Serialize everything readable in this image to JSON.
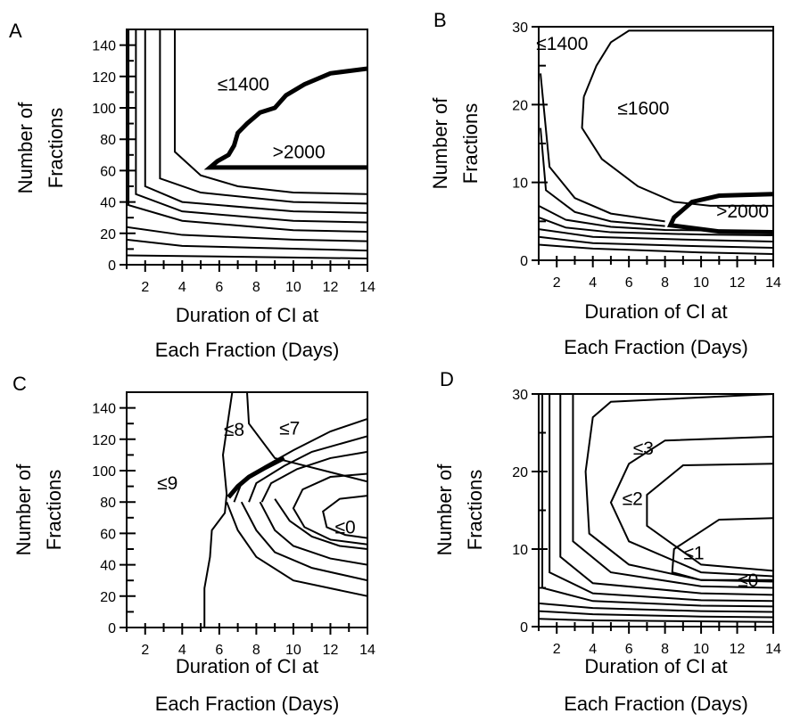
{
  "chart_data": [
    {
      "type": "contour",
      "panel_label": "A",
      "ylabel_lines": [
        "Number of",
        "Fractions"
      ],
      "xlabel_lines": [
        "Duration of CI at",
        "Each Fraction (Days)"
      ],
      "xlim": [
        1,
        14
      ],
      "ylim": [
        0,
        150
      ],
      "xticks": [
        2,
        4,
        6,
        8,
        10,
        12,
        14
      ],
      "yticks": [
        0,
        20,
        40,
        60,
        80,
        100,
        120,
        140
      ],
      "region_labels": [
        {
          "text": "≤1400",
          "x": 7.3,
          "y": 115
        },
        {
          "text": ">2000",
          "x": 10.3,
          "y": 72
        }
      ],
      "contours": [
        [
          [
            1.0,
            6
          ],
          [
            14,
            4
          ]
        ],
        [
          [
            1.0,
            16
          ],
          [
            4,
            12
          ],
          [
            14,
            9
          ]
        ],
        [
          [
            1.0,
            24
          ],
          [
            4,
            19
          ],
          [
            10,
            16
          ],
          [
            14,
            15
          ]
        ],
        [
          [
            1.1,
            150
          ],
          [
            1.1,
            38
          ],
          [
            4,
            28
          ],
          [
            10,
            22
          ],
          [
            14,
            21
          ]
        ],
        [
          [
            1.5,
            150
          ],
          [
            1.5,
            45
          ],
          [
            4,
            34
          ],
          [
            10,
            28
          ],
          [
            14,
            27
          ]
        ],
        [
          [
            2.0,
            150
          ],
          [
            2.0,
            50
          ],
          [
            4,
            40
          ],
          [
            10,
            34
          ],
          [
            14,
            33
          ]
        ],
        [
          [
            2.8,
            150
          ],
          [
            2.8,
            55
          ],
          [
            5,
            46
          ],
          [
            10,
            40
          ],
          [
            14,
            39
          ]
        ],
        [
          [
            3.6,
            150
          ],
          [
            3.6,
            72
          ],
          [
            5,
            57
          ],
          [
            7,
            50
          ],
          [
            10,
            46
          ],
          [
            14,
            45
          ]
        ]
      ],
      "heavy_contours": [
        [
          [
            14,
            125
          ],
          [
            12,
            122
          ],
          [
            10.6,
            115
          ],
          [
            9.6,
            108
          ],
          [
            9,
            100
          ],
          [
            8.2,
            97
          ],
          [
            7.5,
            90
          ],
          [
            7,
            84
          ],
          [
            6.8,
            76
          ],
          [
            6.5,
            70
          ],
          [
            5.9,
            66
          ],
          [
            5.5,
            62
          ],
          [
            6.5,
            62
          ],
          [
            14,
            62
          ]
        ]
      ]
    },
    {
      "type": "contour",
      "panel_label": "B",
      "ylabel_lines": [
        "Number of",
        "Fractions"
      ],
      "xlabel_lines": [
        "Duration of CI at",
        "Each Fraction (Days)"
      ],
      "xlim": [
        1,
        14
      ],
      "ylim": [
        0,
        30
      ],
      "xticks": [
        2,
        4,
        6,
        8,
        10,
        12,
        14
      ],
      "yticks": [
        0,
        10,
        20,
        30
      ],
      "region_labels": [
        {
          "text": "≤1400",
          "x": 2.3,
          "y": 27.8
        },
        {
          "text": "≤1600",
          "x": 6.8,
          "y": 19.5
        },
        {
          "text": ">2000",
          "x": 12.3,
          "y": 6.3
        }
      ],
      "contours": [
        [
          [
            1.0,
            2
          ],
          [
            4,
            1.5
          ],
          [
            10,
            1.0
          ],
          [
            14,
            0.8
          ]
        ],
        [
          [
            1.0,
            3
          ],
          [
            4,
            2.2
          ],
          [
            10,
            1.8
          ],
          [
            14,
            1.6
          ]
        ],
        [
          [
            1.0,
            4
          ],
          [
            4,
            3.0
          ],
          [
            10,
            2.6
          ],
          [
            14,
            2.4
          ]
        ],
        [
          [
            1.0,
            5.5
          ],
          [
            2.5,
            4.2
          ],
          [
            5,
            3.6
          ],
          [
            10,
            3.3
          ],
          [
            14,
            3.2
          ]
        ],
        [
          [
            1.0,
            7
          ],
          [
            2.5,
            5.2
          ],
          [
            5,
            4.3
          ],
          [
            8,
            3.9
          ],
          [
            14,
            3.7
          ]
        ],
        [
          [
            1.1,
            17
          ],
          [
            1.4,
            9
          ],
          [
            3,
            6.2
          ],
          [
            5,
            5.0
          ],
          [
            8,
            4.4
          ]
        ],
        [
          [
            1.1,
            24
          ],
          [
            1.6,
            12
          ],
          [
            3,
            8
          ],
          [
            5,
            6
          ],
          [
            8,
            5
          ]
        ],
        [
          [
            3.5,
            21
          ],
          [
            3.4,
            17
          ],
          [
            4.5,
            13
          ],
          [
            6.5,
            9.5
          ],
          [
            8.5,
            7.5
          ],
          [
            10.5,
            7
          ],
          [
            14,
            7
          ]
        ],
        [
          [
            3.5,
            21
          ],
          [
            4.2,
            25
          ],
          [
            5,
            28
          ],
          [
            6,
            29.5
          ],
          [
            14,
            29.5
          ]
        ]
      ],
      "heavy_contours": [
        [
          [
            14,
            8.5
          ],
          [
            11,
            8.3
          ],
          [
            9.5,
            7.5
          ],
          [
            9,
            6.5
          ],
          [
            8.5,
            5.5
          ],
          [
            8.3,
            4.5
          ],
          [
            10,
            4
          ],
          [
            11,
            3.7
          ],
          [
            14,
            3.6
          ]
        ]
      ]
    },
    {
      "type": "contour",
      "panel_label": "C",
      "ylabel_lines": [
        "Number of",
        "Fractions"
      ],
      "xlabel_lines": [
        "Duration of CI at",
        "Each Fraction (Days)"
      ],
      "xlim": [
        1,
        14
      ],
      "ylim": [
        0,
        150
      ],
      "xticks": [
        2,
        4,
        6,
        8,
        10,
        12,
        14
      ],
      "yticks": [
        0,
        20,
        40,
        60,
        80,
        100,
        120,
        140
      ],
      "region_labels": [
        {
          "text": "≤9",
          "x": 3.2,
          "y": 92
        },
        {
          "text": "≤8",
          "x": 6.8,
          "y": 126
        },
        {
          "text": "≤7",
          "x": 9.8,
          "y": 127
        },
        {
          "text": "≤0",
          "x": 12.8,
          "y": 64
        }
      ],
      "contours": [
        [
          [
            5.2,
            0
          ],
          [
            5.2,
            25
          ],
          [
            5.5,
            45
          ],
          [
            5.6,
            62
          ],
          [
            6.3,
            73
          ],
          [
            6.4,
            85
          ],
          [
            6.2,
            110
          ],
          [
            6.7,
            150
          ]
        ],
        [
          [
            7.5,
            150
          ],
          [
            7.6,
            130
          ],
          [
            9,
            108
          ],
          [
            14,
            93
          ]
        ],
        [
          [
            6.8,
            80
          ],
          [
            7.2,
            92
          ],
          [
            8.5,
            103
          ],
          [
            10,
            113
          ],
          [
            12,
            125
          ],
          [
            14,
            133
          ]
        ],
        [
          [
            7.6,
            80
          ],
          [
            8,
            92
          ],
          [
            9.5,
            103
          ],
          [
            11,
            112
          ],
          [
            14,
            122
          ]
        ],
        [
          [
            8.3,
            80
          ],
          [
            8.8,
            92
          ],
          [
            10.2,
            101
          ],
          [
            12,
            108
          ],
          [
            14,
            112
          ]
        ],
        [
          [
            6.4,
            80
          ],
          [
            7,
            62
          ],
          [
            8,
            45
          ],
          [
            10,
            30
          ],
          [
            14,
            20
          ]
        ],
        [
          [
            7.2,
            80
          ],
          [
            8,
            62
          ],
          [
            9,
            48
          ],
          [
            11,
            38
          ],
          [
            14,
            30
          ]
        ],
        [
          [
            8.2,
            80
          ],
          [
            9,
            62
          ],
          [
            10,
            52
          ],
          [
            12,
            44
          ],
          [
            14,
            40
          ]
        ],
        [
          [
            9,
            82
          ],
          [
            9.8,
            68
          ],
          [
            11,
            58
          ],
          [
            12.5,
            52
          ],
          [
            14,
            50
          ]
        ],
        [
          [
            14,
            98
          ],
          [
            12,
            96
          ],
          [
            10.5,
            88
          ],
          [
            10,
            76
          ],
          [
            10.6,
            64
          ],
          [
            12,
            56
          ],
          [
            14,
            53
          ]
        ],
        [
          [
            14,
            84
          ],
          [
            12.5,
            82
          ],
          [
            11.6,
            74
          ],
          [
            11.8,
            64
          ],
          [
            12.8,
            59
          ],
          [
            14,
            57
          ]
        ]
      ],
      "heavy_contours": [
        [
          [
            6.5,
            83
          ],
          [
            7,
            90
          ],
          [
            7.6,
            96
          ],
          [
            8.5,
            102
          ],
          [
            9.5,
            108
          ]
        ]
      ]
    },
    {
      "type": "contour",
      "panel_label": "D",
      "ylabel_lines": [
        "Number of",
        "Fractions"
      ],
      "xlabel_lines": [
        "Duration of CI at",
        "Each Fraction (Days)"
      ],
      "xlim": [
        1,
        14
      ],
      "ylim": [
        0,
        30
      ],
      "xticks": [
        2,
        4,
        6,
        8,
        10,
        12,
        14
      ],
      "yticks": [
        0,
        10,
        20,
        30
      ],
      "region_labels": [
        {
          "text": "≤3",
          "x": 6.8,
          "y": 23
        },
        {
          "text": "≤2",
          "x": 6.2,
          "y": 16.5
        },
        {
          "text": "≤1",
          "x": 9.6,
          "y": 9.5
        },
        {
          "text": "≤0",
          "x": 12.6,
          "y": 6
        }
      ],
      "contours": [
        [
          [
            1.0,
            1.0
          ],
          [
            4,
            0.8
          ],
          [
            14,
            0.6
          ]
        ],
        [
          [
            1.0,
            2.0
          ],
          [
            4,
            1.6
          ],
          [
            10,
            1.3
          ],
          [
            14,
            1.2
          ]
        ],
        [
          [
            1.0,
            3.0
          ],
          [
            4,
            2.4
          ],
          [
            10,
            2.0
          ],
          [
            14,
            1.9
          ]
        ],
        [
          [
            1.2,
            30
          ],
          [
            1.2,
            5
          ],
          [
            4,
            3.3
          ],
          [
            10,
            2.7
          ],
          [
            14,
            2.6
          ]
        ],
        [
          [
            1.6,
            30
          ],
          [
            1.6,
            7
          ],
          [
            4,
            4.3
          ],
          [
            10,
            3.4
          ],
          [
            14,
            3.3
          ]
        ],
        [
          [
            2.2,
            30
          ],
          [
            2.2,
            9
          ],
          [
            4,
            5.6
          ],
          [
            10,
            4.3
          ],
          [
            14,
            4.1
          ]
        ],
        [
          [
            2.9,
            30
          ],
          [
            2.9,
            11
          ],
          [
            5,
            7
          ],
          [
            10,
            5.2
          ],
          [
            14,
            5
          ]
        ],
        [
          [
            14,
            30
          ],
          [
            5,
            29
          ],
          [
            4,
            27
          ],
          [
            3.6,
            20
          ],
          [
            3.8,
            12
          ],
          [
            6,
            8
          ],
          [
            10,
            6
          ],
          [
            14,
            5.8
          ]
        ],
        [
          [
            14,
            24.5
          ],
          [
            8,
            24
          ],
          [
            6,
            21
          ],
          [
            5,
            16
          ],
          [
            6,
            11
          ],
          [
            10,
            7
          ],
          [
            14,
            6.5
          ]
        ],
        [
          [
            14,
            21
          ],
          [
            9,
            20.8
          ],
          [
            7,
            17
          ],
          [
            7,
            13
          ],
          [
            10,
            8
          ],
          [
            14,
            7.2
          ]
        ],
        [
          [
            14,
            14
          ],
          [
            11,
            13.8
          ],
          [
            8.5,
            10
          ],
          [
            8.4,
            7
          ],
          [
            10,
            6
          ],
          [
            14,
            6
          ]
        ]
      ],
      "heavy_contours": []
    }
  ]
}
